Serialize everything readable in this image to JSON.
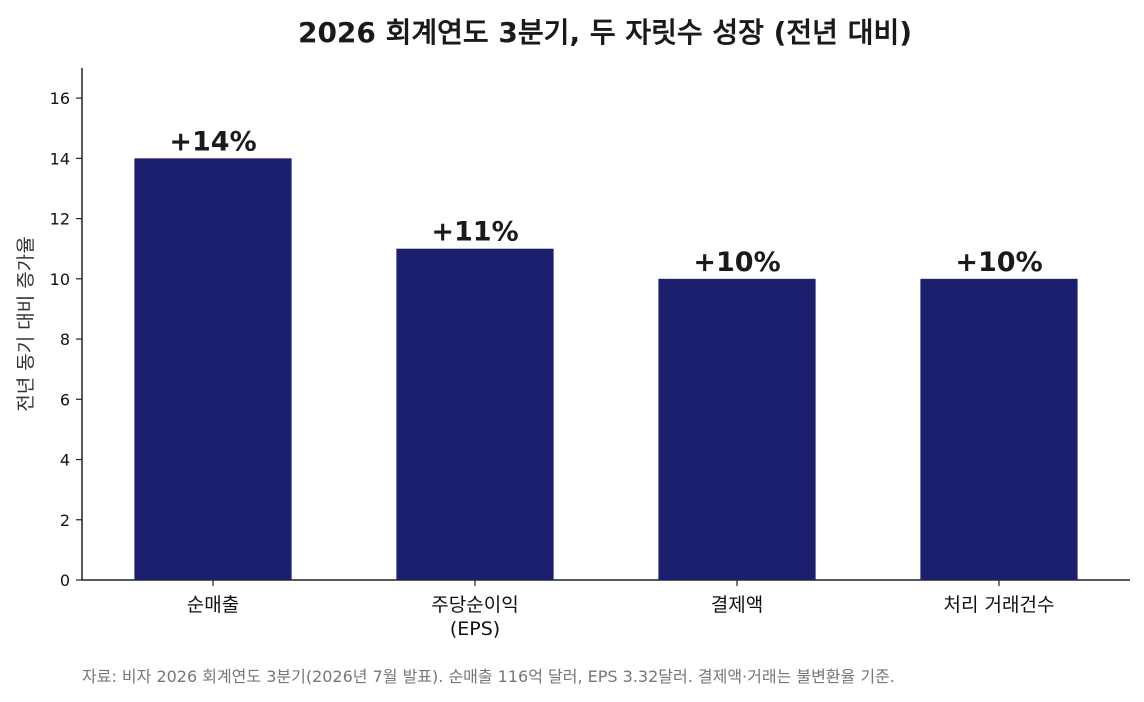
{
  "chart_data": {
    "type": "bar",
    "title": "2026 회계연도 3분기, 두 자릿수 성장 (전년 대비)",
    "ylabel": "전년 동기 대비 증가율",
    "xlabel": "",
    "categories": [
      [
        "순매출"
      ],
      [
        "주당순이익",
        "(EPS)"
      ],
      [
        "결제액"
      ],
      [
        "처리 거래건수"
      ]
    ],
    "values": [
      14,
      11,
      10,
      10
    ],
    "data_labels": [
      "+14%",
      "+11%",
      "+10%",
      "+10%"
    ],
    "ylim": [
      0,
      17
    ],
    "yticks": [
      "0",
      "2",
      "4",
      "6",
      "8",
      "10",
      "12",
      "14",
      "16"
    ],
    "grid": false,
    "bar_color": "#1c1f6e",
    "source": "자료: 비자 2026 회계연도 3분기(2026년 7월 발표). 순매출 116억 달러, EPS 3.32달러. 결제액·거래는 불변환율 기준."
  }
}
